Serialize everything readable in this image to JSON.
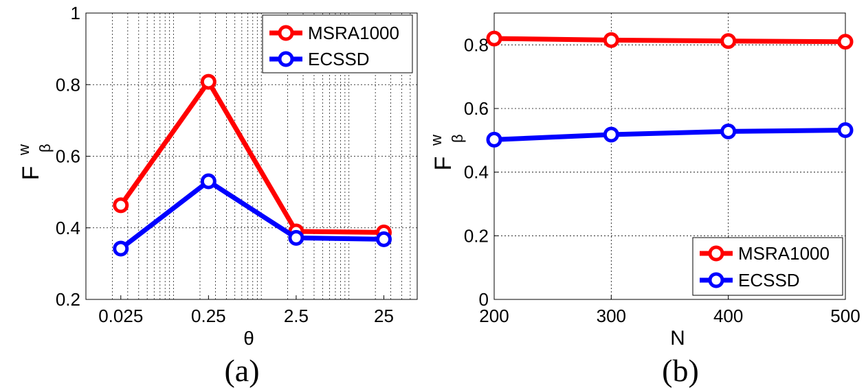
{
  "chart_data": [
    {
      "type": "line",
      "panel_label": "(a)",
      "xscale": "log",
      "x": [
        0.025,
        0.25,
        2.5,
        25
      ],
      "xticklabels": [
        "0.025",
        "0.25",
        "2.5",
        "25"
      ],
      "xlim": [
        0.01,
        60
      ],
      "ylim": [
        0.2,
        1
      ],
      "yticks": [
        0.2,
        0.4,
        0.6,
        0.8,
        1
      ],
      "yticklabels": [
        "0.2",
        "0.4",
        "0.6",
        "0.8",
        "1"
      ],
      "xlabel": "θ",
      "ylabel": {
        "main": "F",
        "sup": "w",
        "sub": "β"
      },
      "grid": true,
      "legend": "top-right",
      "series": [
        {
          "name": "MSRA1000",
          "color": "#ff0000",
          "values": [
            0.463,
            0.808,
            0.39,
            0.387
          ]
        },
        {
          "name": "ECSSD",
          "color": "#0000ff",
          "values": [
            0.342,
            0.53,
            0.372,
            0.368
          ]
        }
      ]
    },
    {
      "type": "line",
      "panel_label": "(b)",
      "xscale": "linear",
      "x": [
        200,
        300,
        400,
        500
      ],
      "xticklabels": [
        "200",
        "300",
        "400",
        "500"
      ],
      "xlim": [
        200,
        500
      ],
      "ylim": [
        0,
        0.9
      ],
      "yticks": [
        0,
        0.2,
        0.4,
        0.6,
        0.8
      ],
      "yticklabels": [
        "0",
        "0.2",
        "0.4",
        "0.6",
        "0.8"
      ],
      "xlabel": "N",
      "ylabel": {
        "main": "F",
        "sup": "w",
        "sub": "β"
      },
      "grid": true,
      "legend": "bottom-right",
      "series": [
        {
          "name": "MSRA1000",
          "color": "#ff0000",
          "values": [
            0.82,
            0.815,
            0.812,
            0.81
          ]
        },
        {
          "name": "ECSSD",
          "color": "#0000ff",
          "values": [
            0.502,
            0.518,
            0.528,
            0.532
          ]
        }
      ]
    }
  ]
}
